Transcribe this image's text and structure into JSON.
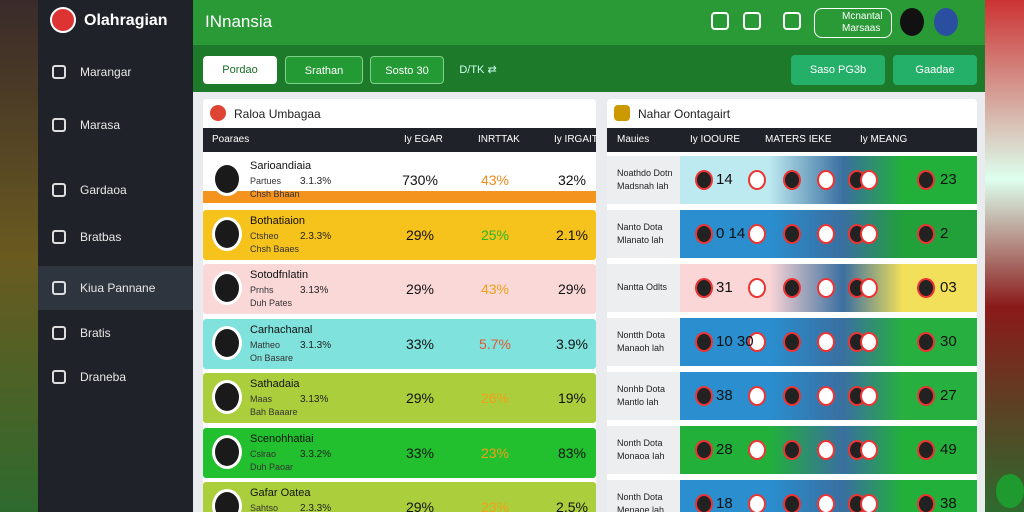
{
  "sidebar": {
    "logo": "Olahragian",
    "items": [
      "Marangar",
      "Marasa",
      "Gardaoa",
      "Bratbas",
      "Kiua Pannane",
      "Bratis",
      "Draneba"
    ]
  },
  "header": {
    "title": "INnansia",
    "account": [
      "Mcnantal",
      "Marsaas"
    ]
  },
  "toolbar": {
    "left": [
      "Pordao",
      "Srathan",
      "Sosto 30",
      "D/TK ⇄"
    ],
    "right": [
      "Saso PG3b",
      "Gaadae"
    ]
  },
  "left_panel": {
    "title": "Raloa Umbagaa",
    "columns": [
      "Poaraes",
      "Iy EGAR",
      "INRTTAK",
      "Iy IRGAIT"
    ],
    "rows": [
      {
        "name": "Sarioandiaia",
        "sub": [
          "Partues",
          "Chsh Bhaan"
        ],
        "pct": "3.1.3%",
        "values": [
          "730%",
          "43%",
          "32%"
        ]
      },
      {
        "name": "Bothatiaion",
        "sub": [
          "Ctsheo",
          "Chsh Baaes"
        ],
        "pct": "2.3.3%",
        "values": [
          "29%",
          "25%",
          "2.1%"
        ]
      },
      {
        "name": "Sotodfnlatin",
        "sub": [
          "Prnhs",
          "Duh Pates"
        ],
        "pct": "3.13%",
        "values": [
          "29%",
          "43%",
          "29%"
        ]
      },
      {
        "name": "Carhachanal",
        "sub": [
          "Matheo",
          "On Basare"
        ],
        "pct": "3.1.3%",
        "values": [
          "33%",
          "5.7%",
          "3.9%"
        ]
      },
      {
        "name": "Sathadaia",
        "sub": [
          "Maas",
          "Bah Baaare"
        ],
        "pct": "3.13%",
        "values": [
          "29%",
          "26%",
          "19%"
        ]
      },
      {
        "name": "Scenohhatiai",
        "sub": [
          "Cslrao",
          "Duh Paoar"
        ],
        "pct": "3.3.2%",
        "values": [
          "33%",
          "23%",
          "83%"
        ]
      },
      {
        "name": "Gafar Oatea",
        "sub": [
          "Sahtso"
        ],
        "pct": "2.3.3%",
        "values": [
          "29%",
          "23%",
          "2.5%"
        ]
      }
    ]
  },
  "right_panel": {
    "title": "Nahar Oontagairt",
    "columns": [
      "Mauies",
      "Iy IOOURE",
      "MATERS IEKE",
      "Iy MEANG"
    ],
    "rows": [
      {
        "label": [
          "Noathdo Dotn",
          "Madsnah lah"
        ],
        "first": "14",
        "last": "23"
      },
      {
        "label": [
          "Nanto Dota",
          "Mlanato lah"
        ],
        "first": "0 14",
        "last": "2"
      },
      {
        "label": [
          "Nantta Odlts"
        ],
        "first": "31",
        "last": "03"
      },
      {
        "label": [
          "Nontth Dota",
          "Manaoh lah"
        ],
        "first": "10 30",
        "last": "30"
      },
      {
        "label": [
          "Nonhb Dota",
          "Mantlo lah"
        ],
        "first": "38",
        "last": "27"
      },
      {
        "label": [
          "Nonth Dota",
          "Monaoa Iah"
        ],
        "first": "28",
        "last": "49"
      },
      {
        "label": [
          "Nonth Dota",
          "Menaoe lah"
        ],
        "first": "18",
        "last": "38"
      }
    ]
  }
}
